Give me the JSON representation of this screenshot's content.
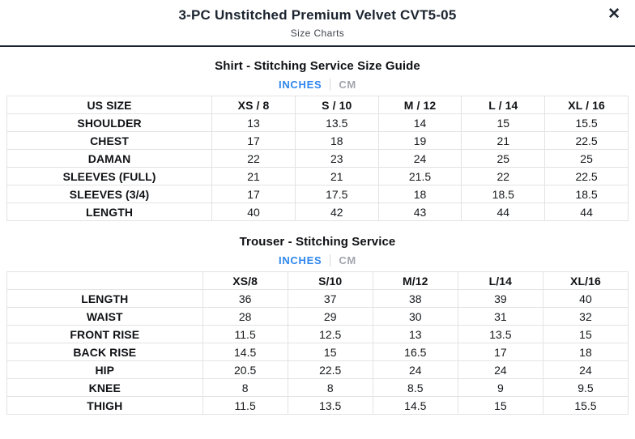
{
  "header": {
    "title": "3-PC Unstitched Premium Velvet CVT5-05",
    "subtitle": "Size Charts",
    "close_icon": "✕"
  },
  "colors": {
    "accent_blue": "#2f86ed",
    "inactive_tab_gray": "#a0a6ad",
    "header_divider_dark": "#18222e",
    "table_border": "#e3e3e6"
  },
  "shirt_section": {
    "title": "Shirt - Stitching Service Size Guide",
    "tabs": {
      "inches_label": "INCHES",
      "cm_label": "CM"
    },
    "table": {
      "headers": [
        "US SIZE",
        "XS / 8",
        "S / 10",
        "M / 12",
        "L / 14",
        "XL / 16"
      ],
      "rows": [
        {
          "label": "SHOULDER",
          "values": [
            "13",
            "13.5",
            "14",
            "15",
            "15.5"
          ]
        },
        {
          "label": "CHEST",
          "values": [
            "17",
            "18",
            "19",
            "21",
            "22.5"
          ]
        },
        {
          "label": "DAMAN",
          "values": [
            "22",
            "23",
            "24",
            "25",
            "25"
          ]
        },
        {
          "label": "SLEEVES (FULL)",
          "values": [
            "21",
            "21",
            "21.5",
            "22",
            "22.5"
          ]
        },
        {
          "label": "SLEEVES (3/4)",
          "values": [
            "17",
            "17.5",
            "18",
            "18.5",
            "18.5"
          ]
        },
        {
          "label": "LENGTH",
          "values": [
            "40",
            "42",
            "43",
            "44",
            "44"
          ]
        }
      ]
    }
  },
  "trouser_section": {
    "title": "Trouser - Stitching Service",
    "tabs": {
      "inches_label": "INCHES",
      "cm_label": "CM"
    },
    "table": {
      "headers": [
        "",
        "XS/8",
        "S/10",
        "M/12",
        "L/14",
        "XL/16"
      ],
      "rows": [
        {
          "label": "LENGTH",
          "values": [
            "36",
            "37",
            "38",
            "39",
            "40"
          ]
        },
        {
          "label": "WAIST",
          "values": [
            "28",
            "29",
            "30",
            "31",
            "32"
          ]
        },
        {
          "label": "FRONT RISE",
          "values": [
            "11.5",
            "12.5",
            "13",
            "13.5",
            "15"
          ]
        },
        {
          "label": "BACK RISE",
          "values": [
            "14.5",
            "15",
            "16.5",
            "17",
            "18"
          ]
        },
        {
          "label": "HIP",
          "values": [
            "20.5",
            "22.5",
            "24",
            "24",
            "24"
          ]
        },
        {
          "label": "KNEE",
          "values": [
            "8",
            "8",
            "8.5",
            "9",
            "9.5"
          ]
        },
        {
          "label": "THIGH",
          "values": [
            "11.5",
            "13.5",
            "14.5",
            "15",
            "15.5"
          ]
        }
      ]
    }
  }
}
